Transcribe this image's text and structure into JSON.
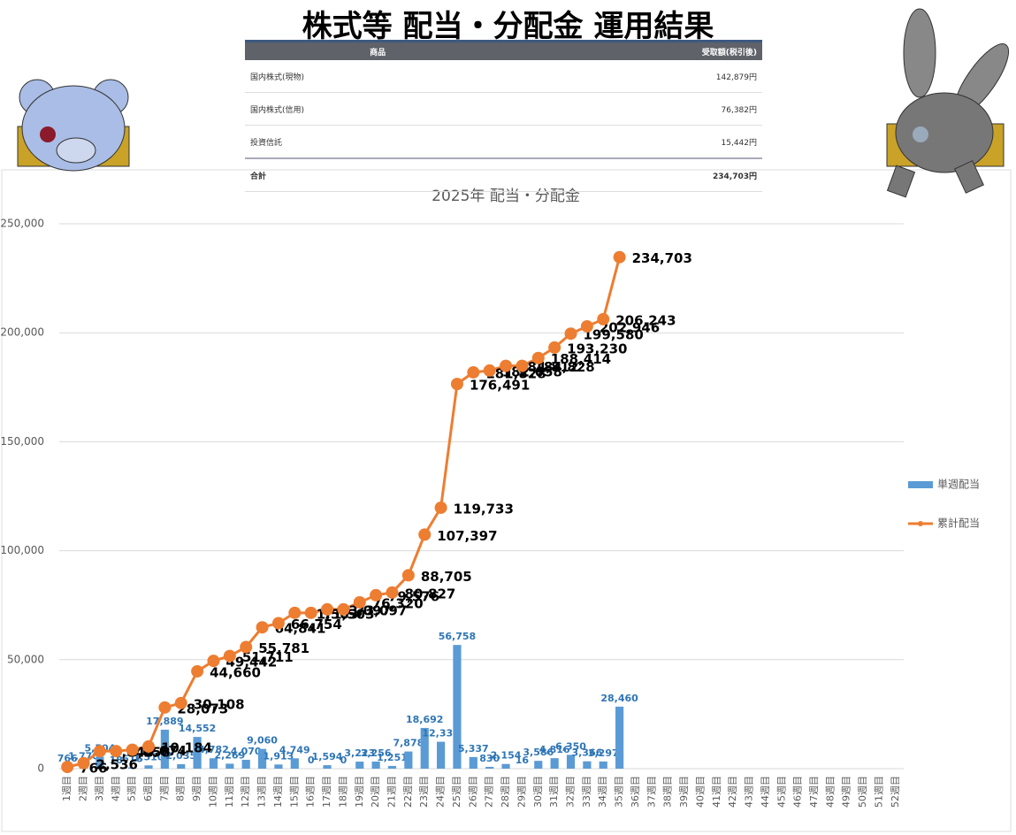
{
  "header": {
    "title": "株式等 配当・分配金 運用結果"
  },
  "table": {
    "headers": [
      "商品",
      "受取額(税引後)"
    ],
    "rows": [
      [
        "国内株式(現物)",
        "142,879円"
      ],
      [
        "国内株式(信用)",
        "76,382円"
      ],
      [
        "投資信託",
        "15,442円"
      ],
      [
        "合計",
        "234,703円"
      ]
    ]
  },
  "chart_data": {
    "type": "bar_line",
    "title": "2025年 配当・分配金",
    "categories": [
      "1週目",
      "2週目",
      "3週目",
      "4週目",
      "5週目",
      "6週目",
      "7週目",
      "8週目",
      "9週目",
      "10週目",
      "11週目",
      "12週目",
      "13週目",
      "14週目",
      "15週目",
      "16週目",
      "17週目",
      "18週目",
      "19週目",
      "20週目",
      "21週目",
      "22週目",
      "23週目",
      "24週目",
      "25週目",
      "26週目",
      "27週目",
      "28週目",
      "29週目",
      "30週目",
      "31週目",
      "32週目",
      "33週目",
      "34週目",
      "35週目",
      "36週目",
      "37週目",
      "38週目",
      "39週目",
      "40週目",
      "41週目",
      "42週目",
      "43週目",
      "44週目",
      "45週目",
      "46週目",
      "47週目",
      "48週目",
      "49週目",
      "50週目",
      "51週目",
      "52週目"
    ],
    "series": [
      {
        "name": "単週配当",
        "color": "#5b9bd5",
        "type": "bar",
        "values": [
          766,
          1770,
          5504,
          18,
          616,
          1510,
          17889,
          2035,
          14552,
          4782,
          2269,
          4070,
          9060,
          1913,
          4749,
          0,
          1594,
          0,
          3223,
          3256,
          1251,
          7878,
          18692,
          12336,
          56758,
          5337,
          830,
          2154,
          16,
          3586,
          4816,
          6350,
          3366,
          3297,
          28460,
          null,
          null,
          null,
          null,
          null,
          null,
          null,
          null,
          null,
          null,
          null,
          null,
          null,
          null,
          null,
          null,
          null
        ],
        "value_labels": [
          "766",
          "1,770",
          "5,504",
          "18",
          "616",
          "1,510",
          "17,889",
          "2,035",
          "14,552",
          "4,782",
          "2,269",
          "4,070",
          "9,060",
          "1,913",
          "4,749",
          "0",
          "1,594",
          "0",
          "3,223",
          "3,256",
          "1,251",
          "7,878",
          "18,692",
          "12,336",
          "56,758",
          "5,337",
          "830",
          "2,154",
          "16",
          "3,586",
          "4,816",
          "6,350",
          "3,366",
          "3,297",
          "28,460",
          null,
          null,
          null,
          null,
          null,
          null,
          null,
          null,
          null,
          null,
          null,
          null,
          null,
          null,
          null,
          null,
          null
        ]
      },
      {
        "name": "累計配当",
        "color": "#ed7d31",
        "type": "line",
        "values": [
          766,
          2536,
          8040,
          8058,
          8674,
          10184,
          28073,
          30108,
          44660,
          49442,
          51711,
          55781,
          64841,
          66754,
          71503,
          71503,
          73097,
          73097,
          76320,
          79576,
          80827,
          88705,
          107397,
          119733,
          176491,
          181828,
          182658,
          184812,
          184828,
          188414,
          193230,
          199580,
          202946,
          206243,
          234703,
          null,
          null,
          null,
          null,
          null,
          null,
          null,
          null,
          null,
          null,
          null,
          null,
          null,
          null,
          null,
          null,
          null
        ],
        "value_labels": [
          "766",
          "2,536",
          "8,040",
          "8,058",
          "8,674",
          "10,184",
          "28,073",
          "30,108",
          "44,660",
          "49,442",
          "51,711",
          "55,781",
          "64,841",
          "66,754",
          "71,503",
          "71,503",
          "73,097",
          "73,097",
          "76,320",
          "79,576",
          "80,827",
          "88,705",
          "107,397",
          "119,733",
          "176,491",
          "181,828",
          "182,658",
          "184,812",
          "184,828",
          "188,414",
          "193,230",
          "199,580",
          "202,946",
          "206,243",
          "234,703",
          null,
          null,
          null,
          null,
          null,
          null,
          null,
          null,
          null,
          null,
          null,
          null,
          null,
          null,
          null,
          null,
          null
        ]
      }
    ],
    "ylim": [
      0,
      250000
    ],
    "yticks": [
      0,
      {
        "value": 50000,
        "label": "50,000"
      },
      {
        "value": 100000,
        "label": "100,000"
      },
      {
        "value": 150000,
        "label": "150,000"
      },
      {
        "value": 200000,
        "label": "200,000"
      },
      {
        "value": 250000,
        "label": "250,000"
      }
    ],
    "grid": true,
    "legend": "right"
  }
}
